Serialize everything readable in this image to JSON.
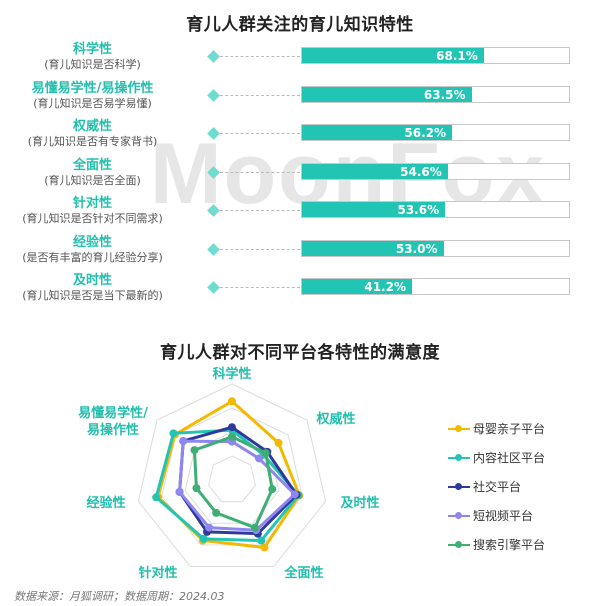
{
  "titles": {
    "bar_chart": "育儿人群关注的育儿知识特性",
    "radar_chart": "育儿人群对不同平台各特性的满意度"
  },
  "watermark": "MoonFox",
  "bars": [
    {
      "name": "科学性",
      "desc": "(育儿知识是否科学)",
      "value": 68.1,
      "label": "68.1%"
    },
    {
      "name": "易懂易学性/易操作性",
      "desc": "(育儿知识是否易学易懂)",
      "value": 63.5,
      "label": "63.5%"
    },
    {
      "name": "权威性",
      "desc": "(育儿知识是否有专家背书)",
      "value": 56.2,
      "label": "56.2%"
    },
    {
      "name": "全面性",
      "desc": "(育儿知识是否全面)",
      "value": 54.6,
      "label": "54.6%"
    },
    {
      "name": "针对性",
      "desc": "(育儿知识是否针对不同需求)",
      "value": 53.6,
      "label": "53.6%"
    },
    {
      "name": "经验性",
      "desc": "(是否有丰富的育儿经验分享)",
      "value": 53.0,
      "label": "53.0%"
    },
    {
      "name": "及时性",
      "desc": "(育儿知识是否是当下最新的)",
      "value": 41.2,
      "label": "41.2%"
    }
  ],
  "radar": {
    "axes": [
      "科学性",
      "权威性",
      "及时性",
      "全面性",
      "针对性",
      "经验性",
      "易懂易学性/易操作性"
    ],
    "axis_labels_display": {
      "top": "科学性",
      "top_right": "权威性",
      "right": "及时性",
      "bottom_right": "全面性",
      "bottom_left": "针对性",
      "left": "经验性",
      "top_left_1": "易懂易学性/",
      "top_left_2": "易操作性"
    }
  },
  "legend": [
    {
      "name": "母婴亲子平台",
      "color": "#f5b800"
    },
    {
      "name": "内容社区平台",
      "color": "#22c5b4"
    },
    {
      "name": "社交平台",
      "color": "#2d3a9c"
    },
    {
      "name": "短视频平台",
      "color": "#8f86f0"
    },
    {
      "name": "搜索引擎平台",
      "color": "#3fae72"
    }
  ],
  "source": "数据来源：月狐调研；数据周期：2024.03",
  "chart_data": [
    {
      "type": "bar",
      "title": "育儿人群关注的育儿知识特性",
      "orientation": "horizontal",
      "categories": [
        "科学性",
        "易懂易学性/易操作性",
        "权威性",
        "全面性",
        "针对性",
        "经验性",
        "及时性"
      ],
      "values": [
        68.1,
        63.5,
        56.2,
        54.6,
        53.6,
        53.0,
        41.2
      ],
      "unit": "%",
      "ylim": [
        0,
        100
      ],
      "color": "#22c5b4"
    },
    {
      "type": "radar",
      "title": "育儿人群对不同平台各特性的满意度",
      "categories": [
        "科学性",
        "权威性",
        "及时性",
        "全面性",
        "针对性",
        "经验性",
        "易懂易学性/易操作性"
      ],
      "scale_note": "values are relative radius (0-1) estimated from pixels; no axis ticks shown",
      "series": [
        {
          "name": "母婴亲子平台",
          "color": "#f5b800",
          "values": [
            0.82,
            0.62,
            0.72,
            0.78,
            0.7,
            0.79,
            0.76
          ]
        },
        {
          "name": "内容社区平台",
          "color": "#22c5b4",
          "values": [
            0.52,
            0.42,
            0.71,
            0.7,
            0.68,
            0.81,
            0.78
          ]
        },
        {
          "name": "社交平台",
          "color": "#2d3a9c",
          "values": [
            0.55,
            0.47,
            0.69,
            0.62,
            0.6,
            0.56,
            0.65
          ]
        },
        {
          "name": "短视频平台",
          "color": "#8f86f0",
          "values": [
            0.4,
            0.36,
            0.67,
            0.58,
            0.55,
            0.56,
            0.65
          ]
        },
        {
          "name": "搜索引擎平台",
          "color": "#3fae72",
          "values": [
            0.45,
            0.45,
            0.43,
            0.55,
            0.38,
            0.38,
            0.5
          ]
        }
      ],
      "legend_position": "right"
    }
  ]
}
